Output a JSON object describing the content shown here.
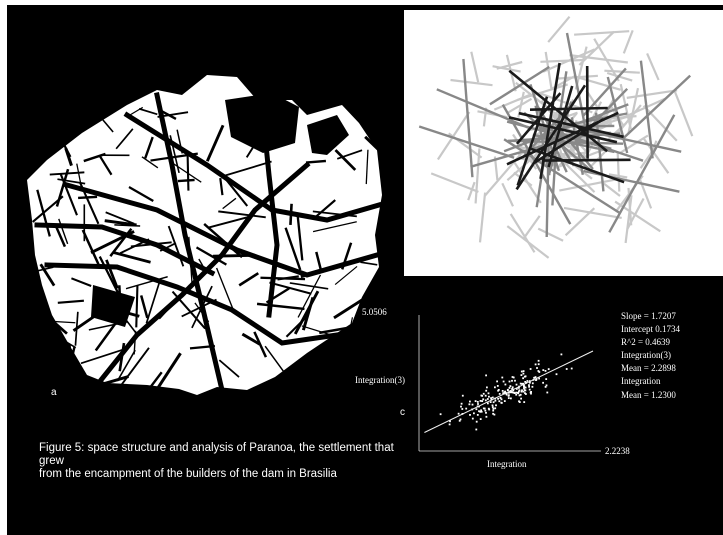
{
  "figure": {
    "panel_labels": {
      "a": "a",
      "c": "c"
    },
    "caption_lines": [
      "Figure 5: space structure and analysis of Paranoa, the settlement that grew",
      "from the encampment of the builders of the dam in Brasilia"
    ]
  },
  "chart_data": {
    "type": "scatter",
    "xlabel": "Integration",
    "ylabel": "Integration(3)",
    "y_max_label": "5.0506",
    "x_max_label": "2.2238",
    "stats": [
      "Slope = 1.7207",
      "Intercept 0.1734",
      "R^2 = 0.4639",
      "Integration(3)",
      "Mean = 2.2898",
      "Integration",
      "Mean = 1.2300"
    ],
    "regression": {
      "slope": 1.7207,
      "intercept": 0.1734,
      "r2": 0.4639
    },
    "x_range": [
      0.55,
      2.2238
    ],
    "y_range": [
      0.6,
      5.0506
    ],
    "point_count": 200,
    "colors": {
      "background": "#000000",
      "points": "#ffffff",
      "axes": "#d8d8d8"
    }
  },
  "colors": {
    "slide_bg": "#000000",
    "plan_fill": "#ffffff",
    "axial_bg": "#ffffff"
  }
}
